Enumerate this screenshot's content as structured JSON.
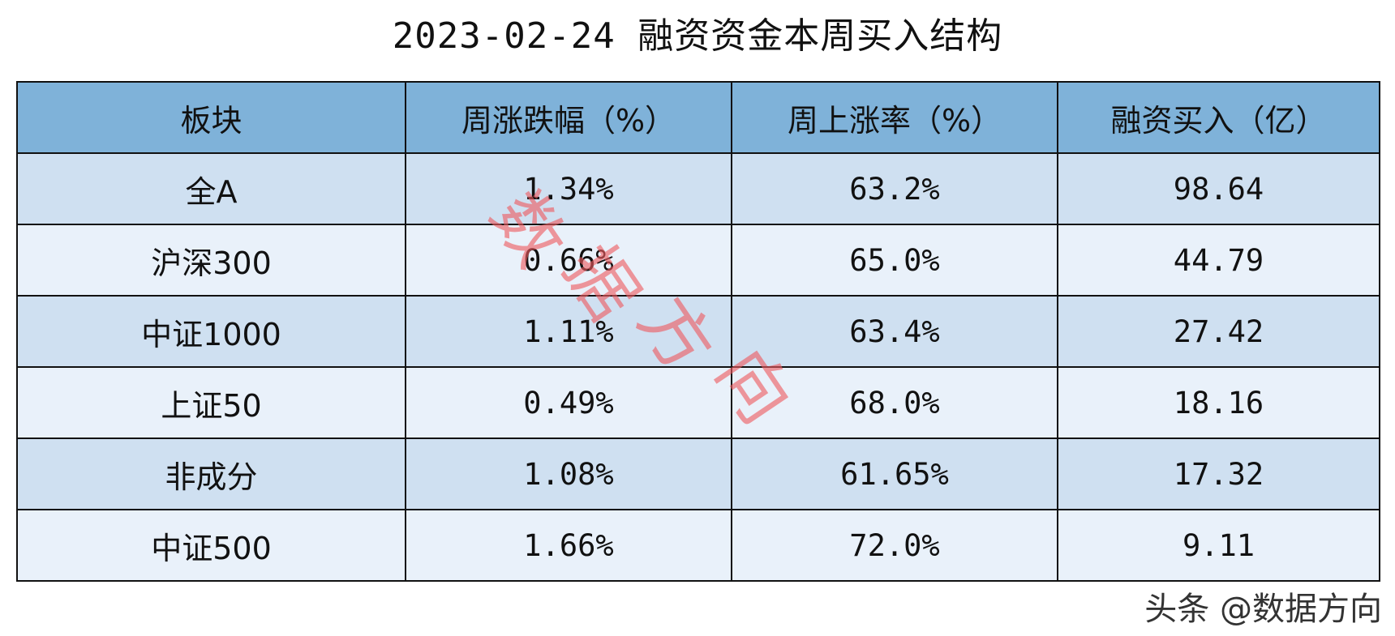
{
  "chart_data": {
    "type": "table",
    "title": "2023-02-24 融资资金本周买入结构",
    "columns": [
      "板块",
      "周涨跌幅（%）",
      "周上涨率（%）",
      "融资买入（亿）"
    ],
    "rows": [
      [
        "全A",
        "1.34%",
        "63.2%",
        "98.64"
      ],
      [
        "沪深300",
        "0.66%",
        "65.0%",
        "44.79"
      ],
      [
        "中证1000",
        "1.11%",
        "63.4%",
        "27.42"
      ],
      [
        "上证50",
        "0.49%",
        "68.0%",
        "18.16"
      ],
      [
        "非成分",
        "1.08%",
        "61.65%",
        "17.32"
      ],
      [
        "中证500",
        "1.66%",
        "72.0%",
        "9.11"
      ]
    ],
    "colors": {
      "header": "#7fb2d9",
      "row_dark": "#cfe0f1",
      "row_light": "#e9f1fa"
    }
  },
  "watermark": {
    "chars": [
      "数",
      "据",
      "方",
      "向"
    ],
    "color": "#ee5a5f"
  },
  "footer_mark": "头条 @数据方向"
}
